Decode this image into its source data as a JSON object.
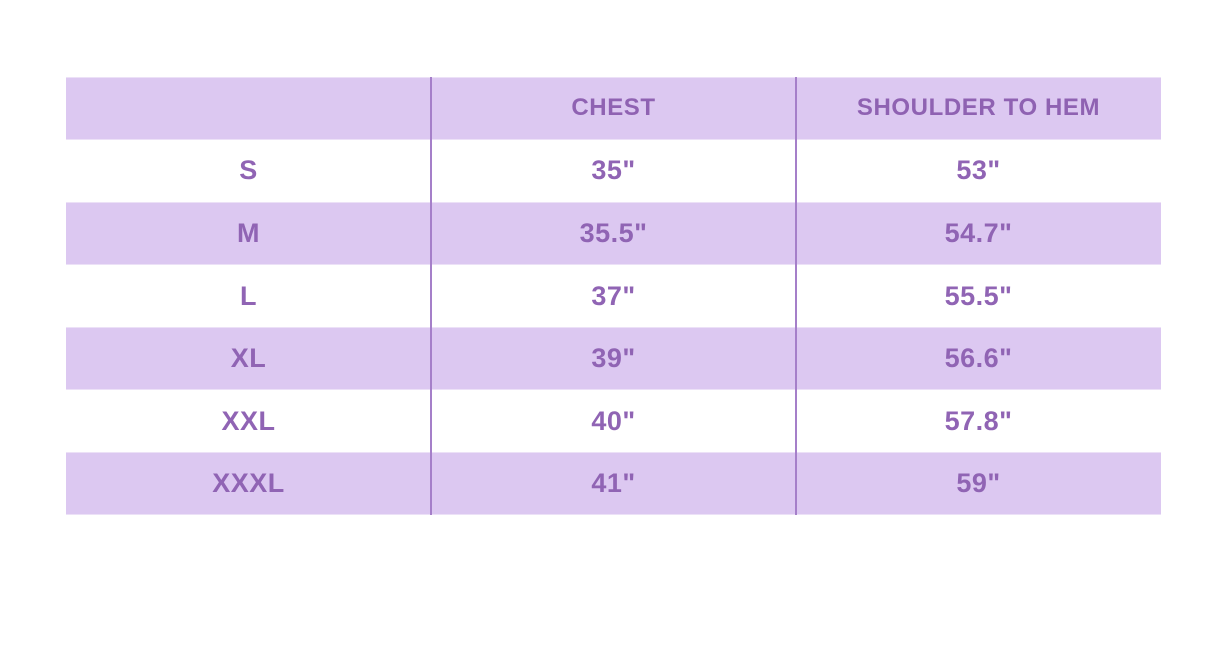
{
  "chart_data": {
    "type": "table",
    "title": "",
    "columns": [
      "",
      "CHEST",
      "SHOULDER TO HEM"
    ],
    "rows": [
      [
        "S",
        "35\"",
        "53\""
      ],
      [
        "M",
        "35.5\"",
        "54.7\""
      ],
      [
        "L",
        "37\"",
        "55.5\""
      ],
      [
        "XL",
        "39\"",
        "56.6\""
      ],
      [
        "XXL",
        "40\"",
        "57.8\""
      ],
      [
        "XXXL",
        "41\"",
        "59\""
      ]
    ],
    "layout_hints": {
      "striping": "header and alternating rows filled lavender, others white",
      "columns_equal_width": true,
      "column_dividers": "thin vertical purple lines between the three columns",
      "grid": "off"
    }
  },
  "colors": {
    "page_background": "#ffffff",
    "row_fill_lavender": "#dcc8f1",
    "text_purple": "#9064b4",
    "divider_purple": "#a57fc9"
  }
}
